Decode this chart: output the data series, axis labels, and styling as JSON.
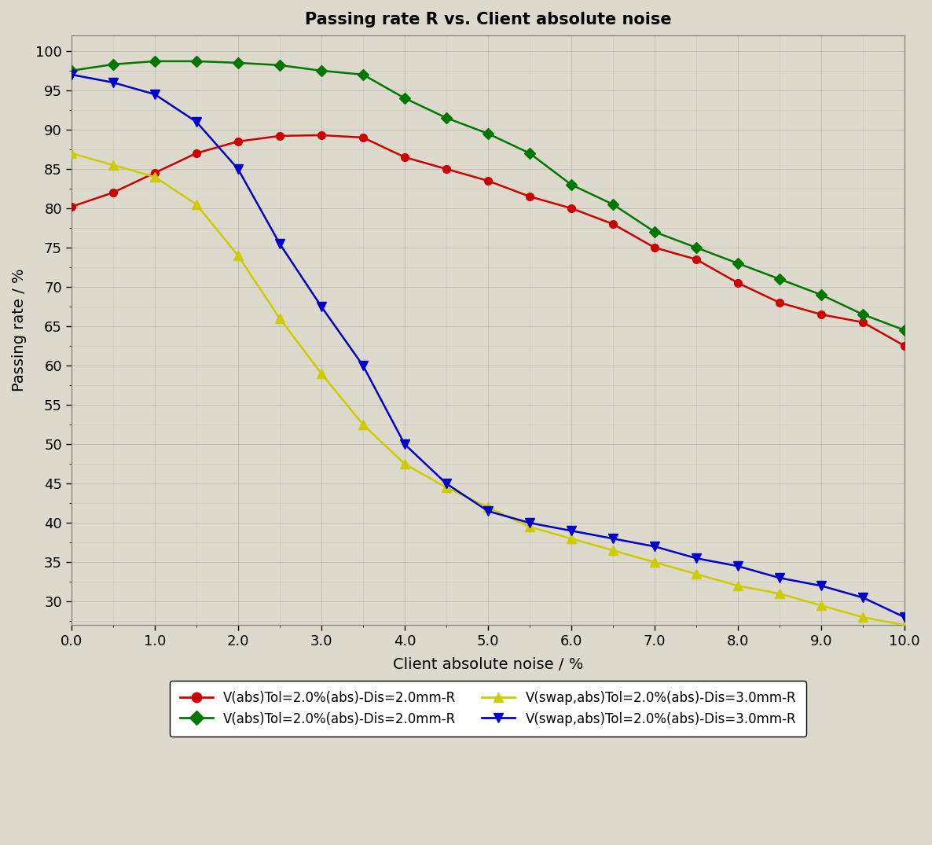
{
  "title": "Passing rate R vs. Client absolute noise",
  "xlabel": "Client absolute noise / %",
  "ylabel": "Passing rate / %",
  "background_color": "#ddd9cc",
  "plot_bg_color": "#ddd9cc",
  "xlim": [
    0.0,
    10.0
  ],
  "ylim": [
    27,
    102
  ],
  "xticks": [
    0.0,
    1.0,
    2.0,
    3.0,
    4.0,
    5.0,
    6.0,
    7.0,
    8.0,
    9.0,
    10.0
  ],
  "yticks": [
    30,
    35,
    40,
    45,
    50,
    55,
    60,
    65,
    70,
    75,
    80,
    85,
    90,
    95,
    100
  ],
  "series": [
    {
      "label": "V(abs)Tol=2.0%(abs)-Dis=2.0mm-R",
      "color": "#cc0000",
      "marker": "o",
      "markersize": 7,
      "linewidth": 1.8,
      "x": [
        0.0,
        0.5,
        1.0,
        1.5,
        2.0,
        2.5,
        3.0,
        3.5,
        4.0,
        4.5,
        5.0,
        5.5,
        6.0,
        6.5,
        7.0,
        7.5,
        8.0,
        8.5,
        9.0,
        9.5,
        10.0
      ],
      "y": [
        80.2,
        82.0,
        84.5,
        87.0,
        88.5,
        89.2,
        89.3,
        89.0,
        86.5,
        85.0,
        83.5,
        81.5,
        80.0,
        78.0,
        75.0,
        73.5,
        70.5,
        68.0,
        66.5,
        65.5,
        62.5
      ]
    },
    {
      "label": "V(abs)Tol=2.0%(abs)-Dis=2.0mm-R",
      "color": "#007700",
      "marker": "D",
      "markersize": 7,
      "linewidth": 1.8,
      "x": [
        0.0,
        0.5,
        1.0,
        1.5,
        2.0,
        2.5,
        3.0,
        3.5,
        4.0,
        4.5,
        5.0,
        5.5,
        6.0,
        6.5,
        7.0,
        7.5,
        8.0,
        8.5,
        9.0,
        9.5,
        10.0
      ],
      "y": [
        97.5,
        98.3,
        98.7,
        98.7,
        98.5,
        98.2,
        97.5,
        97.0,
        94.0,
        91.5,
        89.5,
        87.0,
        83.0,
        80.5,
        77.0,
        75.0,
        73.0,
        71.0,
        69.0,
        66.5,
        64.5
      ]
    },
    {
      "label": "V(swap,abs)Tol=2.0%(abs)-Dis=3.0mm-R",
      "color": "#cccc00",
      "marker": "^",
      "markersize": 8,
      "linewidth": 1.8,
      "x": [
        0.0,
        0.5,
        1.0,
        1.5,
        2.0,
        2.5,
        3.0,
        3.5,
        4.0,
        4.5,
        5.0,
        5.5,
        6.0,
        6.5,
        7.0,
        7.5,
        8.0,
        8.5,
        9.0,
        9.5,
        10.0
      ],
      "y": [
        87.0,
        85.5,
        84.0,
        80.5,
        74.0,
        66.0,
        59.0,
        52.5,
        47.5,
        44.5,
        42.0,
        39.5,
        38.0,
        36.5,
        35.0,
        33.5,
        32.0,
        31.0,
        29.5,
        28.0,
        27.0
      ]
    },
    {
      "label": "V(swap,abs)Tol=2.0%(abs)-Dis=3.0mm-R",
      "color": "#0000cc",
      "marker": "v",
      "markersize": 8,
      "linewidth": 1.8,
      "x": [
        0.0,
        0.5,
        1.0,
        1.5,
        2.0,
        2.5,
        3.0,
        3.5,
        4.0,
        4.5,
        5.0,
        5.5,
        6.0,
        6.5,
        7.0,
        7.5,
        8.0,
        8.5,
        9.0,
        9.5,
        10.0
      ],
      "y": [
        97.0,
        96.0,
        94.5,
        91.0,
        85.0,
        75.5,
        67.5,
        60.0,
        50.0,
        45.0,
        41.5,
        40.0,
        39.0,
        38.0,
        37.0,
        35.5,
        34.5,
        33.0,
        32.0,
        30.5,
        28.0
      ]
    }
  ]
}
